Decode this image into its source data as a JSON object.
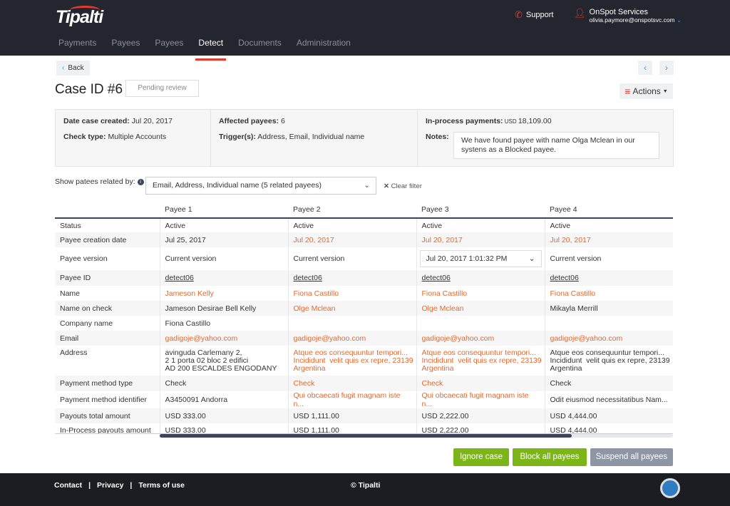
{
  "header": {
    "logo": "Tipalti",
    "support": "Support",
    "company": "OnSpot Services",
    "email": "olivia.paymore@onspotsvc.com",
    "nav": [
      {
        "label": "Payments"
      },
      {
        "label": "Payees"
      },
      {
        "label": "Payees"
      },
      {
        "label": "Detect",
        "active": true
      },
      {
        "label": "Documents"
      },
      {
        "label": "Administration"
      }
    ]
  },
  "toolbar": {
    "back": "Back",
    "actions": "Actions"
  },
  "case": {
    "title": "Case ID #6",
    "status": "Pending review"
  },
  "summary": {
    "date_label": "Date case created:",
    "date": " Jul 20, 2017",
    "check_label": "Check type:",
    "check": " Multiple Accounts",
    "affected_label": "Affected payees:",
    "affected": " 6",
    "triggers_label": "Trigger(s):",
    "triggers": " Address, Email, Individual name",
    "inprocess_label": "In-process payments:",
    "inprocess_cur": " USD ",
    "inprocess": "18,109.00",
    "notes_label": "Notes:",
    "notes": "We have found payee with name Olga Mclean in our systens as a Blocked payee."
  },
  "filter": {
    "label": "Show patees related by:",
    "value": "Email, Address, Individual name (5 related payees)",
    "clear": "Clear filter"
  },
  "table": {
    "headers": [
      "",
      "Payee 1",
      "Payee 2",
      "Payee 3",
      "Payee 4"
    ],
    "rows": [
      {
        "label": "Status",
        "cells": [
          {
            "v": "Active"
          },
          {
            "v": "Active"
          },
          {
            "v": "Active"
          },
          {
            "v": "Active"
          }
        ]
      },
      {
        "label": "Payee creation date",
        "cells": [
          {
            "v": "Jul 25, 2017"
          },
          {
            "v": "Jul 20, 2017",
            "hl": true
          },
          {
            "v": "Jul 20, 2017",
            "hl": true
          },
          {
            "v": "Jul 20, 2017",
            "hl": true
          }
        ]
      },
      {
        "label": "Payee version",
        "cells": [
          {
            "v": "Current version"
          },
          {
            "v": "Current version"
          },
          {
            "v": "Jul 20, 2017 1:01:32 PM",
            "select": true
          },
          {
            "v": "Current version"
          }
        ]
      },
      {
        "label": "Payee ID",
        "cells": [
          {
            "v": "detect06",
            "link": true
          },
          {
            "v": "detect06",
            "link": true
          },
          {
            "v": "detect06",
            "link": true
          },
          {
            "v": "detect06",
            "link": true
          }
        ]
      },
      {
        "label": "Name",
        "cells": [
          {
            "v": "Jameson Kelly",
            "hl": true
          },
          {
            "v": "Fiona Castillo",
            "hl": true
          },
          {
            "v": "Fiona Castillo",
            "hl": true
          },
          {
            "v": "Fiona Castillo",
            "hl": true
          }
        ]
      },
      {
        "label": "Name on check",
        "cells": [
          {
            "v": "Jameson Desirae Bell Kelly"
          },
          {
            "v": "Olge Mclean",
            "hl": true
          },
          {
            "v": "Olge Mclean",
            "hl": true
          },
          {
            "v": "Mikayla Merrill"
          }
        ]
      },
      {
        "label": "Company name",
        "cells": [
          {
            "v": "Fiona Castillo"
          },
          {
            "v": ""
          },
          {
            "v": ""
          },
          {
            "v": ""
          }
        ]
      },
      {
        "label": "Email",
        "cells": [
          {
            "v": "gadigoje@yahoo.com",
            "hl": true
          },
          {
            "v": "gadigoje@yahoo.com",
            "hl": true
          },
          {
            "v": "gadigoje@yahoo.com",
            "hl": true
          },
          {
            "v": "gadigoje@yahoo.com",
            "hl": true
          }
        ]
      },
      {
        "label": "Address",
        "cells": [
          {
            "v": "avinguda Carlemany 2,\n2 1 porta 02 bloc 2 edifici\nAD 200 ESCALDES ENGODANY"
          },
          {
            "v": "Atque eos consequuntur tempori...\nIncididunt  velit quis ex repre, 23139\nArgentina",
            "hl": true
          },
          {
            "v": "Atque eos consequuntur tempori...\nIncididunt  velit quis ex repre, 23139\nArgentina",
            "hl": true
          },
          {
            "v": "Atque eos consequuntur tempori...\nIncididunt  velit quis ex repre, 23139\nArgentina"
          }
        ]
      },
      {
        "label": "Payment method type",
        "cells": [
          {
            "v": "Check"
          },
          {
            "v": "Check",
            "hl": true
          },
          {
            "v": "Check",
            "hl": true
          },
          {
            "v": "Check"
          }
        ]
      },
      {
        "label": "Payment method identifier",
        "cells": [
          {
            "v": "A3450091 Andorra"
          },
          {
            "v": "Qui obcaecati fugit magnam iste n...",
            "hl": true
          },
          {
            "v": "Qui obcaecati fugit magnam iste n...",
            "hl": true
          },
          {
            "v": "Odit eiusmod necessitatibus Nam..."
          }
        ]
      },
      {
        "label": "Payouts total amount",
        "cells": [
          {
            "v": "USD 333.00"
          },
          {
            "v": "USD 1,111.00"
          },
          {
            "v": "USD 2,222.00"
          },
          {
            "v": "USD 4,444.00"
          }
        ]
      },
      {
        "label": "In-Process payouts amount",
        "cells": [
          {
            "v": "USD 333.00"
          },
          {
            "v": "USD 1,111.00"
          },
          {
            "v": "USD 2,222.00"
          },
          {
            "v": "USD 4,444.00"
          }
        ]
      }
    ]
  },
  "buttons": {
    "ignore": "Ignore case",
    "block": "Block all payees",
    "suspend": "Suspend all payees"
  },
  "footer": {
    "contact": "Contact",
    "privacy": "Privacy",
    "terms": "Terms of use",
    "sep": "|",
    "copyright": "© Tipalti",
    "seal": "AICPA SOC"
  },
  "colors": {
    "header": "#23262f",
    "accent": "#e53a2e",
    "highlight": "#e8672a",
    "primary_btn": "#7cb518",
    "secondary_btn": "#8e95a5"
  }
}
